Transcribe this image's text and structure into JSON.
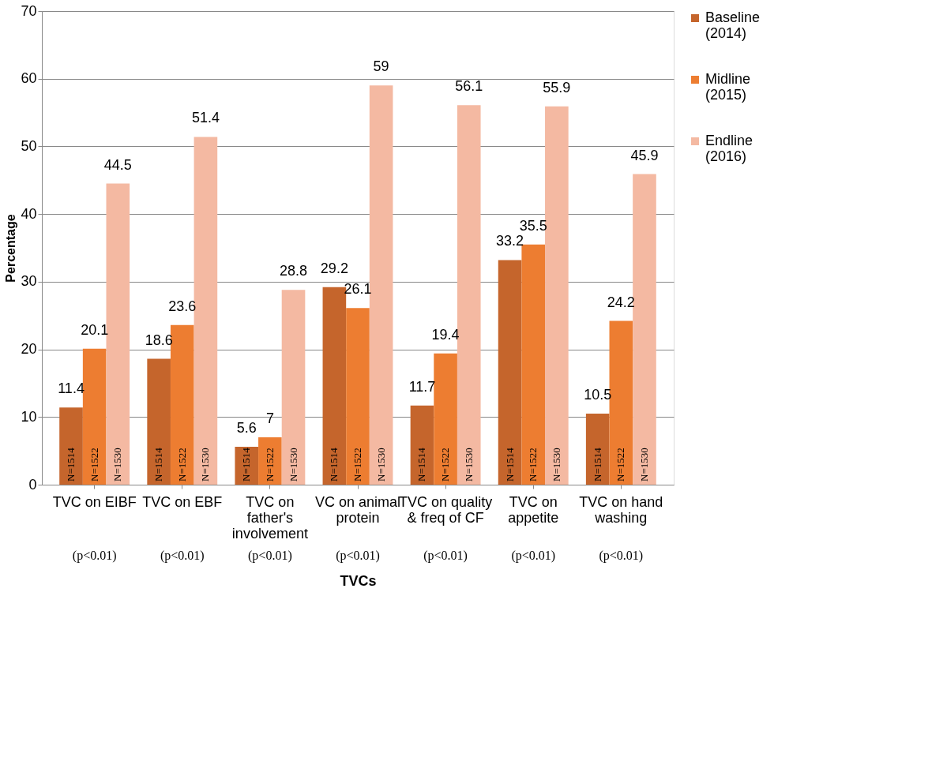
{
  "chart_data": {
    "type": "bar",
    "xlabel": "TVCs",
    "ylabel": "Percentage",
    "categories": [
      "TVC on EIBF",
      "TVC on EBF",
      "TVC on father's involvement",
      "VC on animal protein",
      "TVC on quality & freq of CF",
      "TVC on appetite",
      "TVC on hand washing"
    ],
    "series": [
      {
        "name": "Baseline (2014)",
        "color": "#c5652c",
        "values": [
          11.4,
          18.6,
          5.6,
          29.2,
          11.7,
          33.2,
          10.5
        ]
      },
      {
        "name": "Midline (2015)",
        "color": "#ed7d31",
        "values": [
          20.1,
          23.6,
          7,
          26.1,
          19.4,
          35.5,
          24.2
        ]
      },
      {
        "name": "Endline (2016)",
        "color": "#f4b9a2",
        "values": [
          44.5,
          51.4,
          28.8,
          59,
          56.1,
          55.9,
          45.9
        ]
      }
    ],
    "ylim": [
      0,
      70
    ],
    "yticks": [
      0,
      10,
      20,
      30,
      40,
      50,
      60,
      70
    ],
    "grid": "y",
    "legend": "right",
    "data_labels": true,
    "annotations": [
      "N=1514",
      "N=1522",
      "N=1530",
      "N=1514",
      "N=1522",
      "N=1530",
      "N=1514",
      "N=1522",
      "N=1530",
      "N=1514",
      "N=1522",
      "N=1530",
      "N=1514",
      "N=1522",
      "N=1530",
      "N=1514",
      "N=1522",
      "N=1530",
      "N=1514",
      "N=1522",
      "N=1530",
      "(p<0.01)",
      "(p<0.01)",
      "(p<0.01)",
      "(p<0.01)",
      "(p<0.01)",
      "(p<0.01)",
      "(p<0.01)"
    ]
  }
}
